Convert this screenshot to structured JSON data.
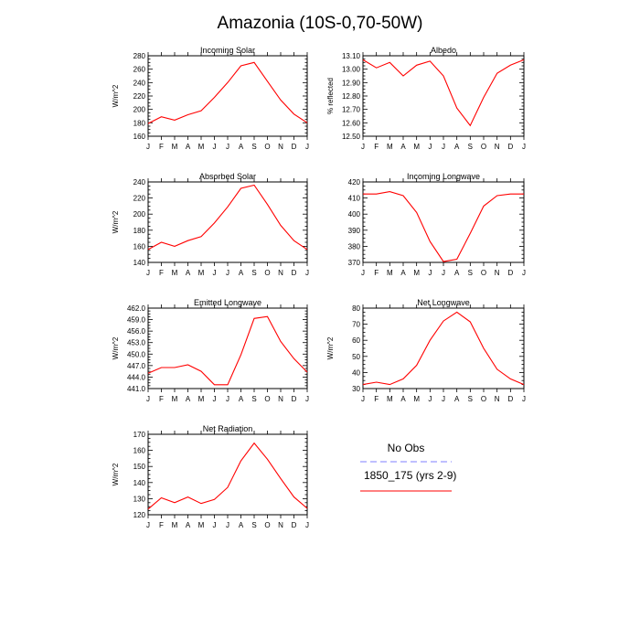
{
  "title": "Amazonia (10S-0,70-50W)",
  "colors": {
    "model": "#ff0000",
    "obs": "#7f7fff",
    "axes": "#000000"
  },
  "legend": {
    "obs_label": "No Obs",
    "model_label": "1850_175 (yrs 2-9)"
  },
  "chart_data": [
    {
      "type": "line",
      "title": "Incoming Solar",
      "ylabel": "W/m^2",
      "xlabel": "",
      "categories": [
        "J",
        "F",
        "M",
        "A",
        "M",
        "J",
        "J",
        "A",
        "S",
        "O",
        "N",
        "D",
        "J"
      ],
      "yticks": [
        "160",
        "180",
        "200",
        "220",
        "240",
        "260",
        "280"
      ],
      "ylim": [
        160,
        280
      ],
      "series": [
        {
          "name": "1850_175 (yrs 2-9)",
          "values": [
            179,
            189,
            184,
            192,
            198,
            218,
            240,
            265,
            270,
            242,
            214,
            193,
            180
          ]
        }
      ]
    },
    {
      "type": "line",
      "title": "Albedo",
      "ylabel": "% reflected",
      "xlabel": "",
      "categories": [
        "J",
        "F",
        "M",
        "A",
        "M",
        "J",
        "J",
        "A",
        "S",
        "O",
        "N",
        "D",
        "J"
      ],
      "yticks": [
        "12.50",
        "12.60",
        "12.70",
        "12.80",
        "12.90",
        "13.00",
        "13.10"
      ],
      "ylim": [
        12.5,
        13.1
      ],
      "series": [
        {
          "name": "1850_175 (yrs 2-9)",
          "values": [
            13.07,
            13.01,
            13.05,
            12.95,
            13.03,
            13.06,
            12.95,
            12.71,
            12.58,
            12.79,
            12.97,
            13.03,
            13.07
          ]
        }
      ]
    },
    {
      "type": "line",
      "title": "Absorbed Solar",
      "ylabel": "W/m^2",
      "xlabel": "",
      "categories": [
        "J",
        "F",
        "M",
        "A",
        "M",
        "J",
        "J",
        "A",
        "S",
        "O",
        "N",
        "D",
        "J"
      ],
      "yticks": [
        "140",
        "160",
        "180",
        "200",
        "220",
        "240"
      ],
      "ylim": [
        140,
        240
      ],
      "series": [
        {
          "name": "1850_175 (yrs 2-9)",
          "values": [
            156,
            165,
            160,
            167,
            172,
            189,
            209,
            232,
            236,
            212,
            186,
            167,
            156
          ]
        }
      ]
    },
    {
      "type": "line",
      "title": "Incoming Longwave",
      "ylabel": "",
      "xlabel": "",
      "categories": [
        "J",
        "F",
        "M",
        "A",
        "M",
        "J",
        "J",
        "A",
        "S",
        "O",
        "N",
        "D",
        "J"
      ],
      "yticks": [
        "370",
        "380",
        "390",
        "400",
        "410",
        "420"
      ],
      "ylim": [
        370,
        420
      ],
      "series": [
        {
          "name": "1850_175 (yrs 2-9)",
          "values": [
            412.5,
            412.5,
            414,
            411.5,
            401,
            383,
            370.5,
            372,
            388,
            405,
            411.5,
            412.5,
            412.5
          ]
        }
      ]
    },
    {
      "type": "line",
      "title": "Emitted Longwave",
      "ylabel": "W/m^2",
      "xlabel": "",
      "categories": [
        "J",
        "F",
        "M",
        "A",
        "M",
        "J",
        "J",
        "A",
        "S",
        "O",
        "N",
        "D",
        "J"
      ],
      "yticks": [
        "441.0",
        "444.0",
        "447.0",
        "450.0",
        "453.0",
        "456.0",
        "459.0",
        "462.0"
      ],
      "ylim": [
        441,
        462
      ],
      "series": [
        {
          "name": "1850_175 (yrs 2-9)",
          "values": [
            445,
            446.5,
            446.5,
            447.2,
            445.5,
            442,
            442,
            449.8,
            459.3,
            459.8,
            453.3,
            448.8,
            445.3
          ]
        }
      ]
    },
    {
      "type": "line",
      "title": "Net Longwave",
      "ylabel": "W/m^2",
      "xlabel": "",
      "categories": [
        "J",
        "F",
        "M",
        "A",
        "M",
        "J",
        "J",
        "A",
        "S",
        "O",
        "N",
        "D",
        "J"
      ],
      "yticks": [
        "30",
        "40",
        "50",
        "60",
        "70",
        "80"
      ],
      "ylim": [
        30,
        80
      ],
      "series": [
        {
          "name": "1850_175 (yrs 2-9)",
          "values": [
            32.5,
            34,
            32.5,
            36,
            44.5,
            60,
            72,
            77.5,
            71.5,
            55,
            42,
            36,
            32.5
          ]
        }
      ]
    },
    {
      "type": "line",
      "title": "Net Radiation",
      "ylabel": "W/m^2",
      "xlabel": "",
      "categories": [
        "J",
        "F",
        "M",
        "A",
        "M",
        "J",
        "J",
        "A",
        "S",
        "O",
        "N",
        "D",
        "J"
      ],
      "yticks": [
        "120",
        "130",
        "140",
        "150",
        "160",
        "170"
      ],
      "ylim": [
        120,
        170
      ],
      "series": [
        {
          "name": "1850_175 (yrs 2-9)",
          "values": [
            123.5,
            130.5,
            127.5,
            131,
            127,
            129.5,
            137,
            153.5,
            164.5,
            154.5,
            142.5,
            131,
            124
          ]
        }
      ]
    }
  ]
}
